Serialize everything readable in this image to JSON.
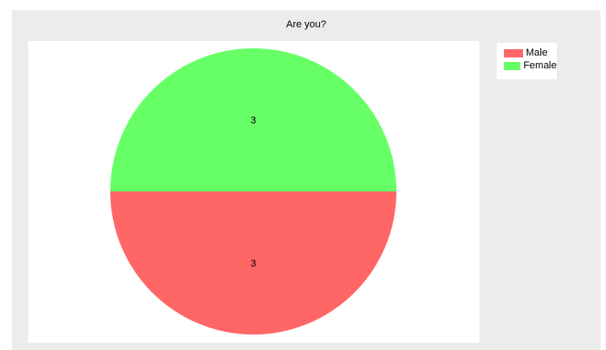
{
  "chart_data": {
    "type": "pie",
    "title": "Are you?",
    "slices": [
      {
        "label": "Male",
        "value": 3,
        "color": "#ff6666"
      },
      {
        "label": "Female",
        "value": 3,
        "color": "#66ff66"
      }
    ],
    "start_angle_deg": 0,
    "direction": "clockwise",
    "legend_position": "top-right",
    "background_color": "#ececec"
  }
}
